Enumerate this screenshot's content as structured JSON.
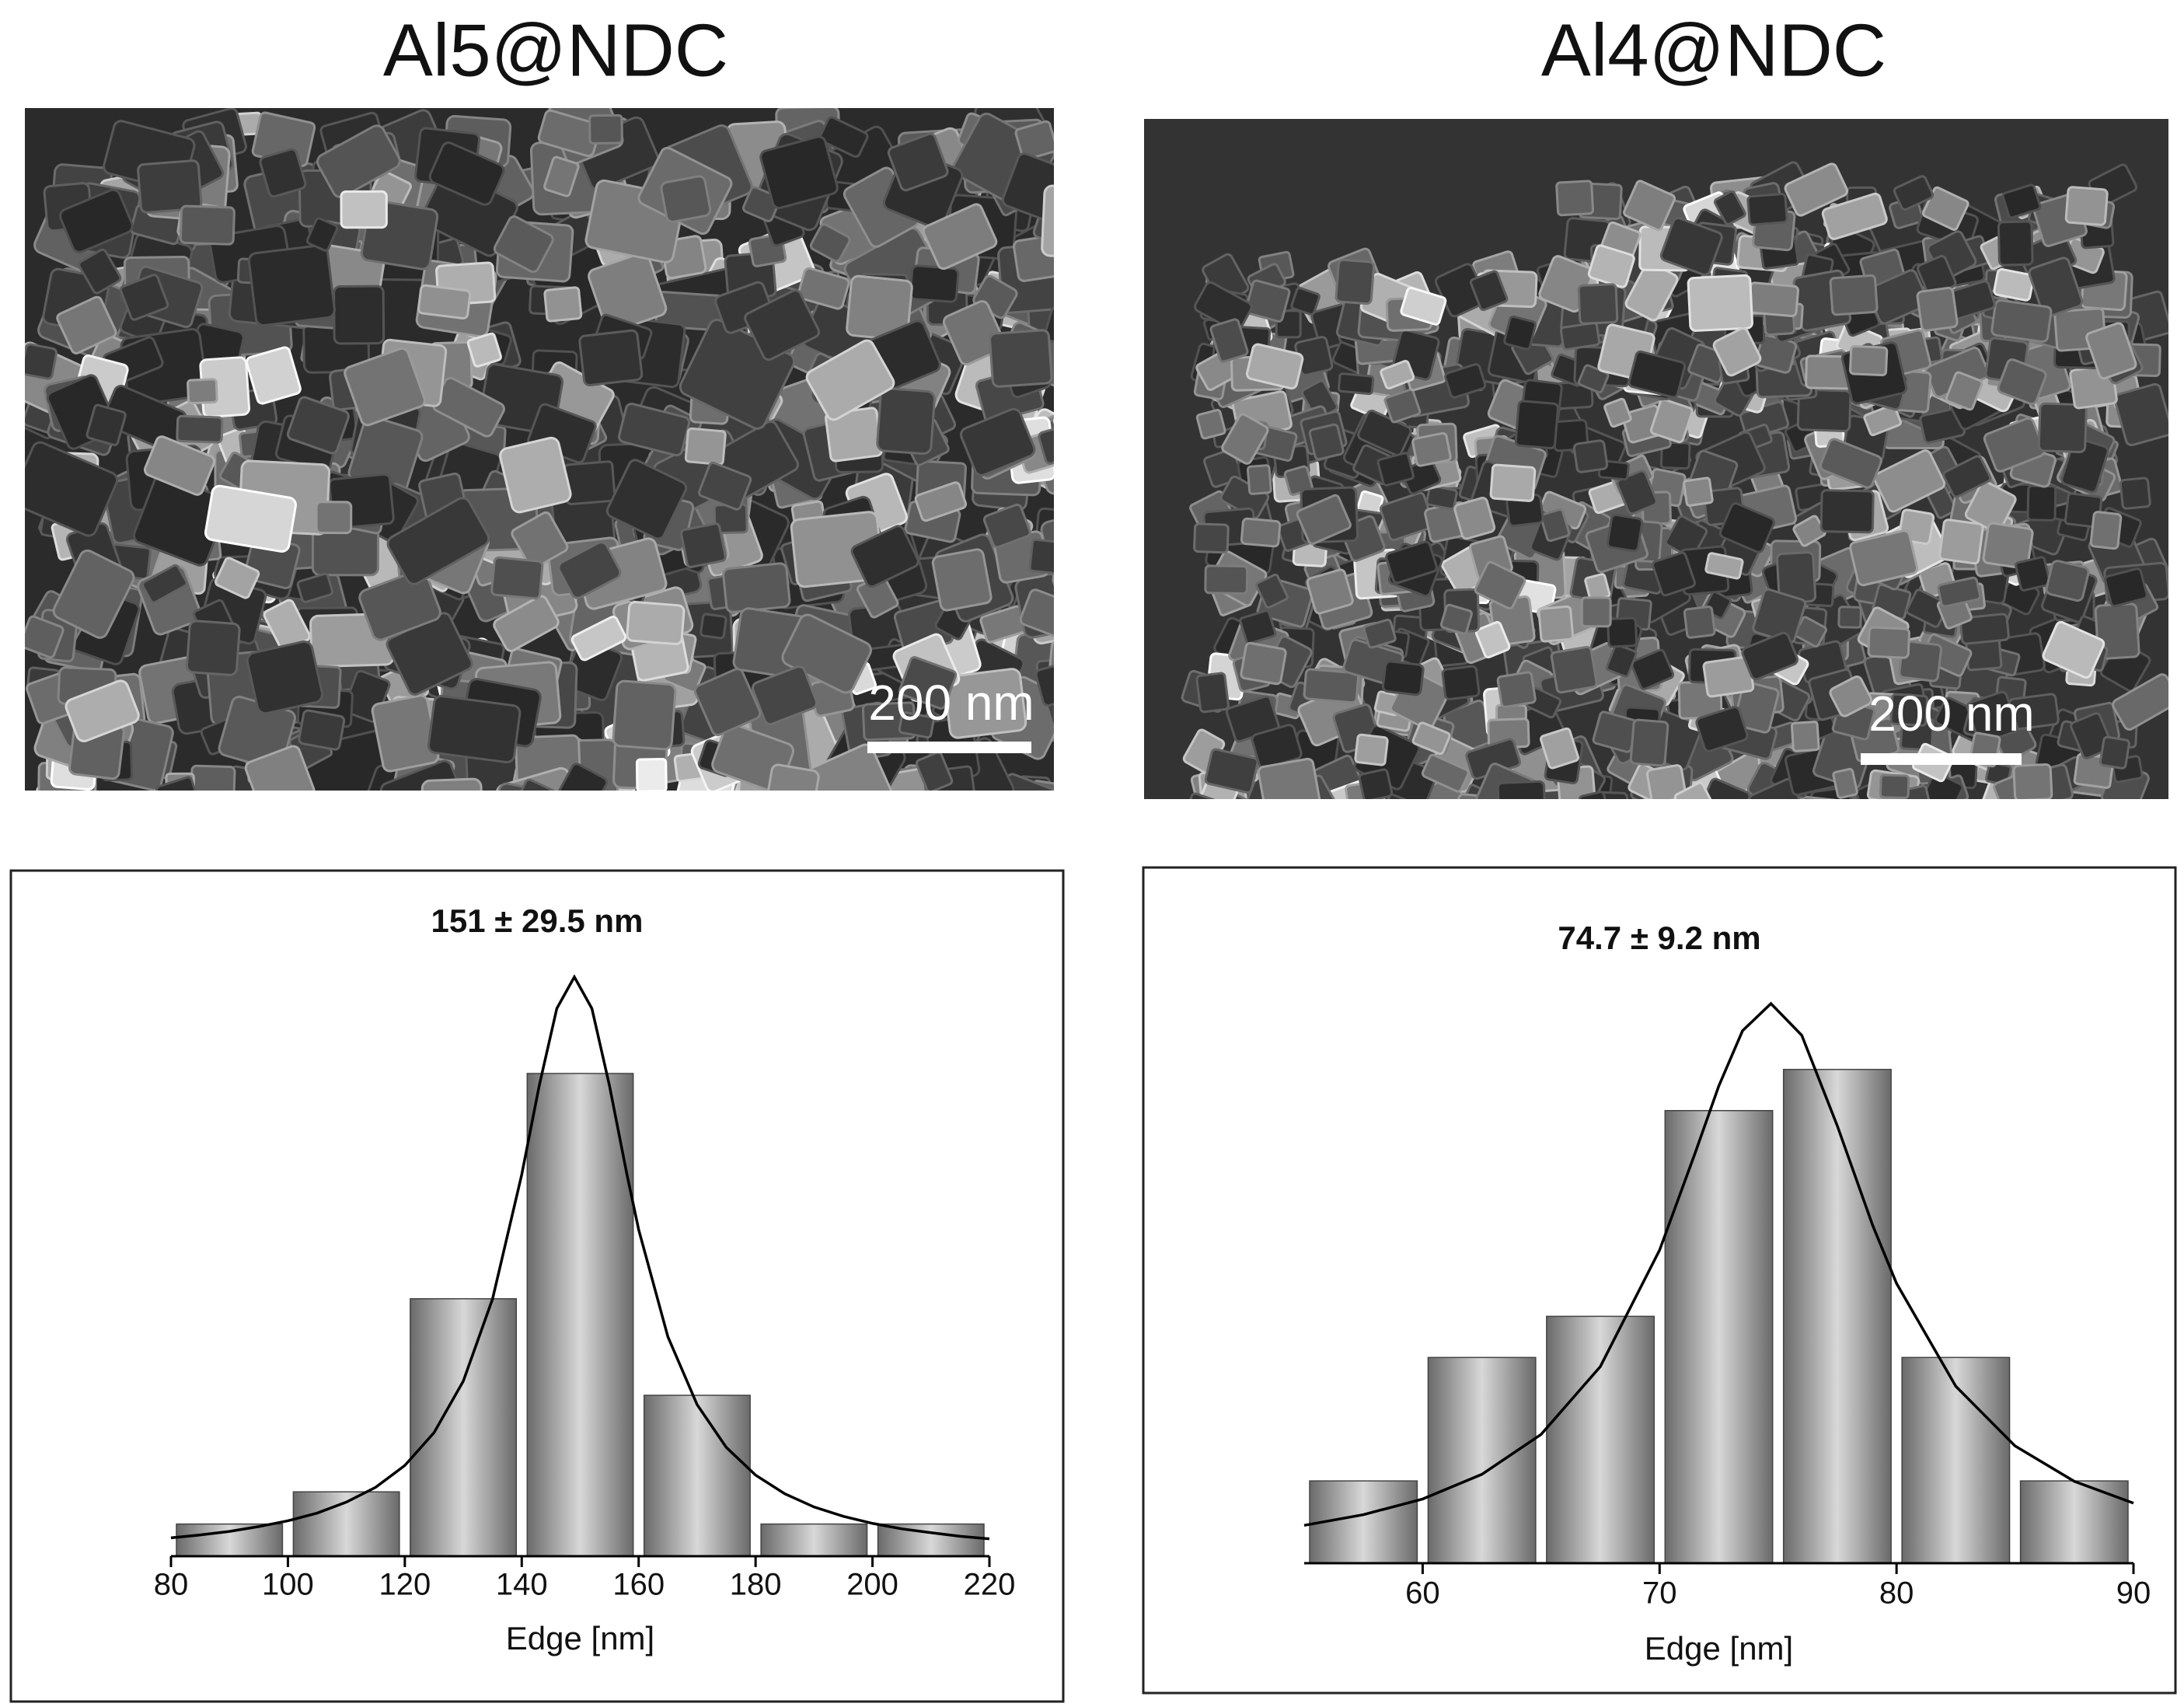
{
  "images": [
    {
      "label": "Al5@NDC",
      "scale_bar": "200 nm"
    },
    {
      "label": "Al4@NDC",
      "scale_bar": "200 nm"
    }
  ],
  "chart_data": [
    {
      "type": "histogram",
      "title": "151 ± 29.5 nm",
      "x_label": "Edge [nm]",
      "bins": [
        80,
        100,
        120,
        140,
        160,
        180,
        200,
        220
      ],
      "counts": [
        1,
        2,
        8,
        15,
        5,
        1,
        1
      ],
      "xlim": [
        80,
        220
      ],
      "xticks": [
        80,
        100,
        120,
        140,
        160,
        180,
        200,
        220
      ],
      "ylim": [
        0,
        20
      ],
      "fit": {
        "x": [
          80,
          85,
          90,
          95,
          100,
          105,
          110,
          115,
          120,
          125,
          130,
          135,
          140,
          143,
          146,
          149,
          152,
          155,
          158,
          160,
          165,
          170,
          175,
          180,
          185,
          190,
          195,
          200,
          205,
          210,
          215,
          220
        ],
        "values": [
          0.57,
          0.66,
          0.77,
          0.92,
          1.1,
          1.34,
          1.68,
          2.14,
          2.82,
          3.84,
          5.44,
          7.99,
          11.86,
          14.63,
          17.02,
          18,
          17.02,
          14.63,
          11.86,
          10.15,
          6.82,
          4.71,
          3.38,
          2.52,
          1.94,
          1.53,
          1.24,
          1.02,
          0.85,
          0.73,
          0.62,
          0.54
        ]
      }
    },
    {
      "type": "histogram",
      "title": "74.7 ± 9.2 nm",
      "x_label": "Edge [nm]",
      "bins": [
        55,
        60,
        65,
        70,
        75,
        80,
        85,
        90
      ],
      "counts": [
        2,
        5,
        6,
        11,
        12,
        5,
        2
      ],
      "xlim": [
        55,
        90
      ],
      "xticks": [
        60,
        70,
        80,
        90
      ],
      "ylim": [
        0,
        15
      ],
      "fit": {
        "x": [
          55,
          57.5,
          60,
          62.5,
          65,
          67.5,
          70,
          71.5,
          72.5,
          73.5,
          74.7,
          76,
          77.5,
          79,
          80,
          82.5,
          85,
          87.5,
          90
        ],
        "values": [
          0.92,
          1.18,
          1.56,
          2.16,
          3.13,
          4.78,
          7.61,
          9.97,
          11.6,
          12.94,
          13.6,
          12.83,
          10.63,
          8.2,
          6.8,
          4.3,
          2.85,
          1.99,
          1.46
        ]
      }
    }
  ]
}
